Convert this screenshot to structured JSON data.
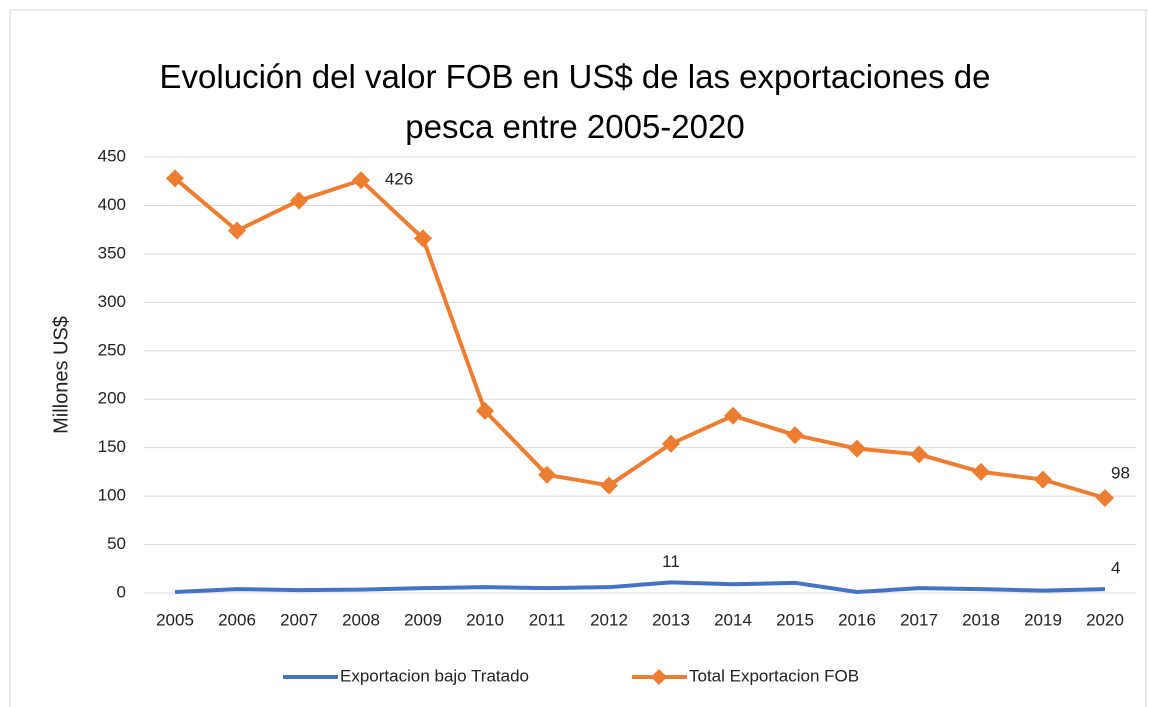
{
  "chart_data": {
    "type": "line",
    "title": "Evolución del valor FOB en US$ de las exportaciones de pesca entre 2005-2020",
    "y_label": "Millones US$",
    "categories": [
      "2005",
      "2006",
      "2007",
      "2008",
      "2009",
      "2010",
      "2011",
      "2012",
      "2013",
      "2014",
      "2015",
      "2016",
      "2017",
      "2018",
      "2019",
      "2020"
    ],
    "series": [
      {
        "name": "Exportacion bajo Tratado",
        "color": "#4472C4",
        "marker": "none",
        "values": [
          1,
          4,
          3,
          3.5,
          5,
          6,
          5,
          6,
          11,
          9,
          10.5,
          1,
          5,
          4,
          2.5,
          4
        ],
        "data_labels": [
          8,
          15
        ]
      },
      {
        "name": "Total Exportacion FOB",
        "color": "#ED7D31",
        "marker": "diamond",
        "values": [
          428,
          374,
          405,
          426,
          366,
          188,
          122,
          111,
          154,
          183,
          163,
          149,
          143,
          125,
          117,
          98
        ],
        "data_labels": [
          3,
          15
        ]
      }
    ],
    "ylim": [
      0,
      450
    ],
    "yticks": [
      0,
      50,
      100,
      150,
      200,
      250,
      300,
      350,
      400,
      450
    ],
    "grid": true,
    "legend": "bottom"
  }
}
